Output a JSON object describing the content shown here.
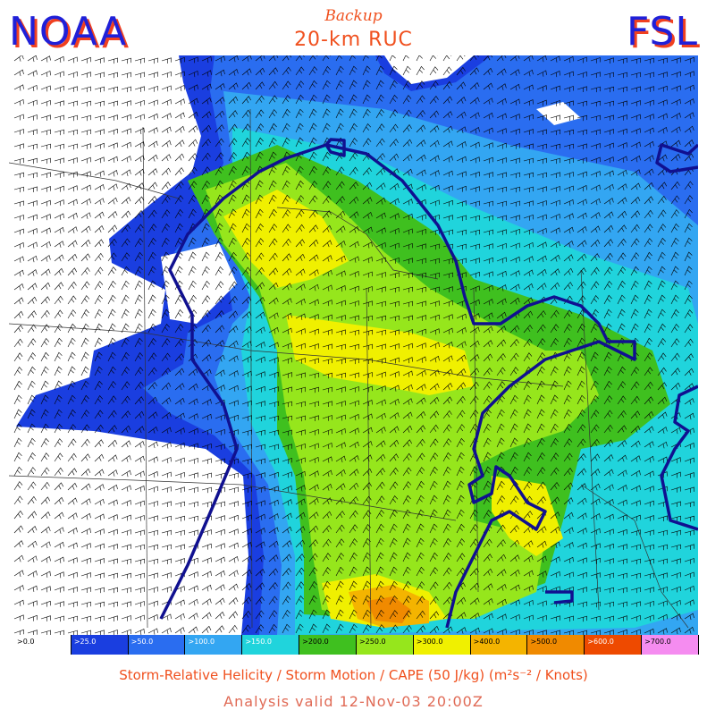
{
  "header": {
    "left_logo": "NOAA",
    "right_logo": "FSL",
    "subtitle": "Backup",
    "model": "20-km RUC"
  },
  "legend": {
    "bins": [
      {
        "label": ">0.0",
        "color": "#ffffff"
      },
      {
        "label": ">25.0",
        "color": "#1a3ee0"
      },
      {
        "label": ">50.0",
        "color": "#2a6df0"
      },
      {
        "label": ">100.0",
        "color": "#33a6f2"
      },
      {
        "label": ">150.0",
        "color": "#20d4dc"
      },
      {
        "label": ">200.0",
        "color": "#3fc01f"
      },
      {
        "label": ">250.0",
        "color": "#96e61c"
      },
      {
        "label": ">300.0",
        "color": "#f0f000"
      },
      {
        "label": ">400.0",
        "color": "#f4b400"
      },
      {
        "label": ">500.0",
        "color": "#f08a00"
      },
      {
        "label": ">600.0",
        "color": "#ee4a00"
      },
      {
        "label": ">700.0",
        "color": "#f58cf0"
      }
    ]
  },
  "caption": "Storm-Relative Helicity / Storm Motion / CAPE (50 J/kg)  (m²s⁻² / Knots)",
  "valid_time": "Analysis valid 12-Nov-03 20:00Z",
  "colors": {
    "title_red": "#f0501e",
    "logo_blue": "#2020d8",
    "logo_shadow": "#f04020",
    "valid_text": "#e06a55",
    "cape_contour": "#101090",
    "barb": "#000000",
    "boundary": "#333333"
  }
}
